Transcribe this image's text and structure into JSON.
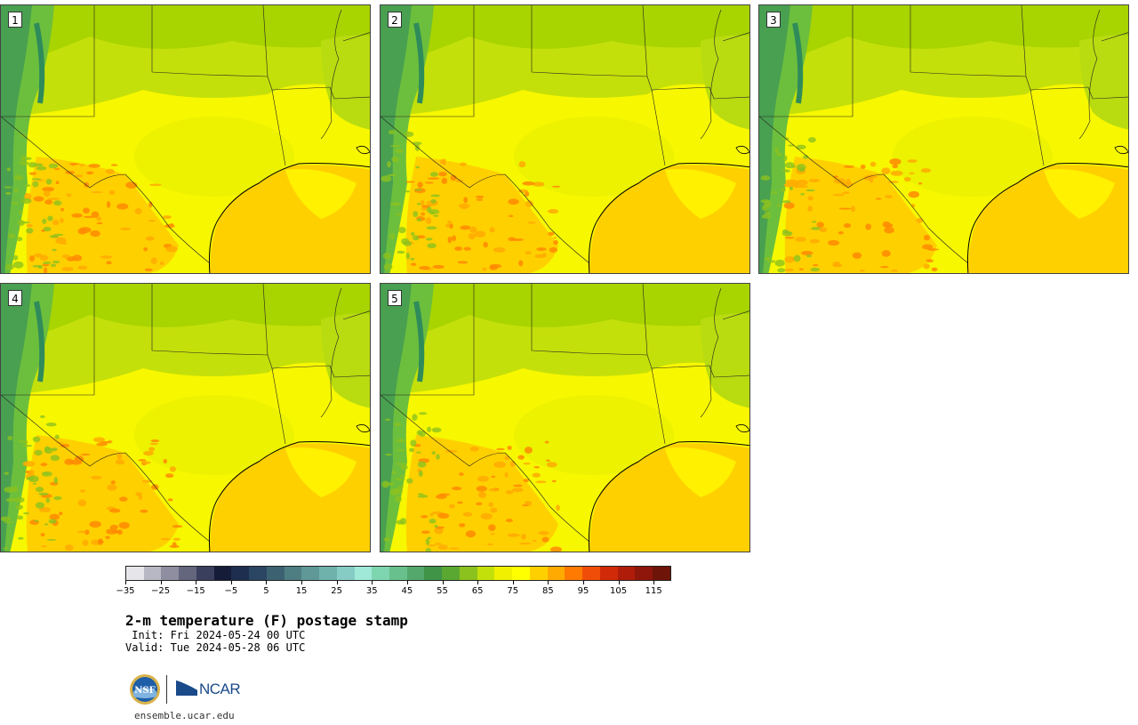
{
  "panels": [
    {
      "label": "1"
    },
    {
      "label": "2"
    },
    {
      "label": "3"
    },
    {
      "label": "4"
    },
    {
      "label": "5"
    }
  ],
  "colorbar": {
    "colors": [
      "#e6e6ea",
      "#b8b8c4",
      "#8e8ea0",
      "#64667e",
      "#3a3f5e",
      "#141c38",
      "#1e2e4e",
      "#2b4662",
      "#3c6272",
      "#4e7e82",
      "#5f9896",
      "#6fb2ac",
      "#86ccc4",
      "#a0e8d8",
      "#7ed6b0",
      "#68c08c",
      "#54a86c",
      "#3f9448",
      "#5aa832",
      "#8cc21e",
      "#c4e00a",
      "#f0f000",
      "#ffff00",
      "#ffd000",
      "#ffaa00",
      "#ff7a00",
      "#f04e08",
      "#d02a08",
      "#b01c0a",
      "#8e160a",
      "#6e1408"
    ],
    "ticks": [
      "−35",
      "−25",
      "−15",
      "−5",
      "5",
      "15",
      "25",
      "35",
      "45",
      "55",
      "65",
      "75",
      "85",
      "95",
      "105",
      "115"
    ]
  },
  "title": "2-m temperature (F) postage stamp",
  "init": " Init: Fri 2024-05-24 00 UTC",
  "valid": "Valid: Tue 2024-05-28 06 UTC",
  "logos": {
    "nsf": "NSF",
    "ncar": "NCAR"
  },
  "site": "ensemble.ucar.edu"
}
